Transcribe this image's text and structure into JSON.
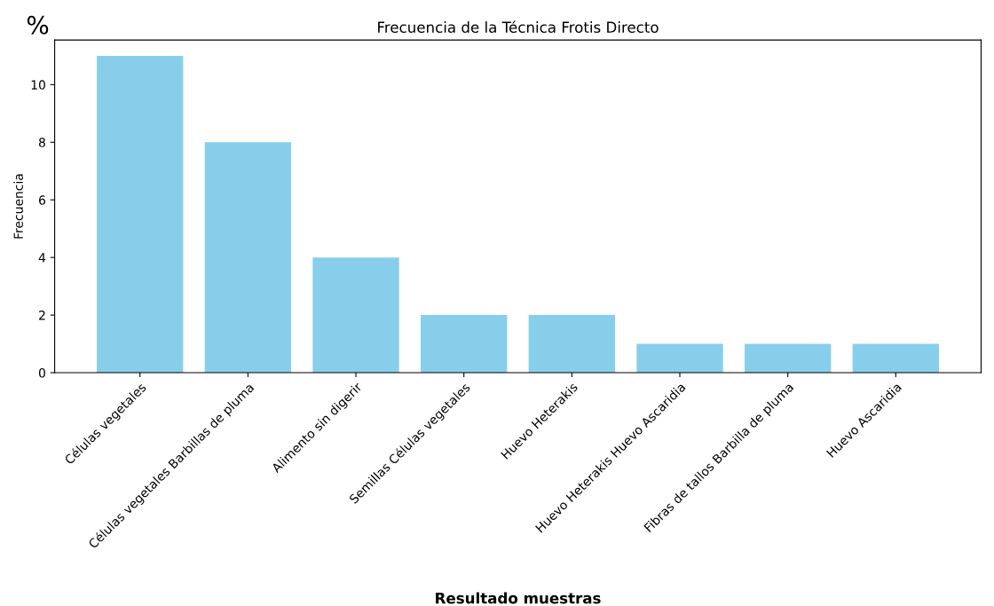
{
  "chart_data": {
    "type": "bar",
    "title": "Frecuencia de la Técnica Frotis Directo",
    "xlabel": "Resultado muestras",
    "ylabel": "Frecuencia",
    "categories": [
      "Células vegetales",
      "Células vegetales Barbillas de pluma",
      "Alimento sin digerir",
      "Semillas Células vegetales",
      "Huevo Heterakis",
      "Huevo Heterakis Huevo Ascaridia",
      "Fibras de tallos Barbilla de pluma",
      "Huevo Ascaridia"
    ],
    "values": [
      11,
      8,
      4,
      2,
      2,
      1,
      1,
      1
    ],
    "color": "#87ceeb",
    "ylim": [
      0,
      11.55
    ],
    "yticks": [
      0,
      2,
      4,
      6,
      8,
      10
    ],
    "grid": false,
    "annotations": [
      "%"
    ]
  }
}
